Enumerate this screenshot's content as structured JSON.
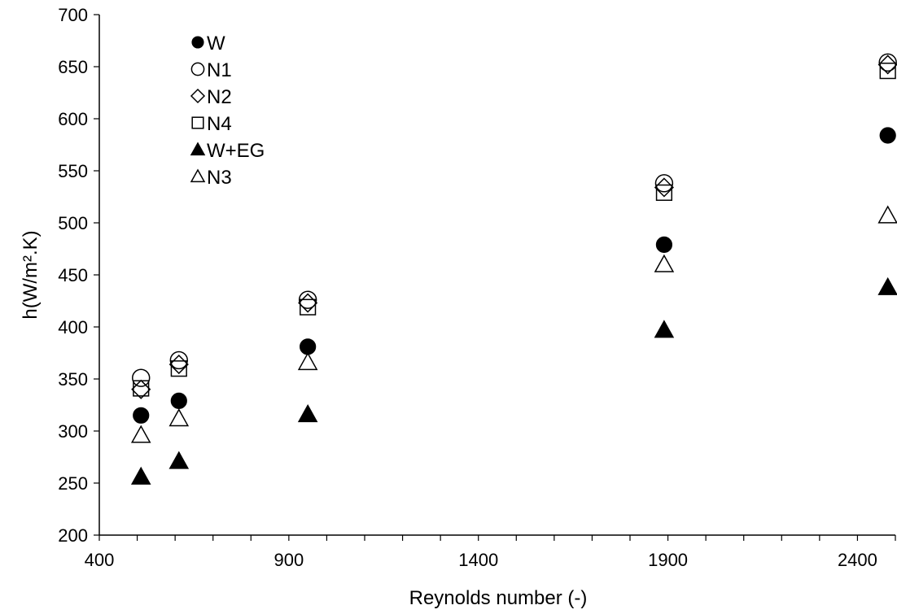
{
  "chart_data": {
    "type": "scatter",
    "xlabel": "Reynolds number (-)",
    "ylabel": "h(W/m².K)",
    "xlim": [
      400,
      2500
    ],
    "ylim": [
      200,
      700
    ],
    "x_major_ticks": [
      400,
      900,
      1400,
      1900,
      2400
    ],
    "x_minor_step": 100,
    "y_ticks": [
      200,
      250,
      300,
      350,
      400,
      450,
      500,
      550,
      600,
      650,
      700
    ],
    "grid": false,
    "legend_position": "top-left",
    "series": [
      {
        "name": "W",
        "marker": "circle-filled",
        "x": [
          510,
          610,
          950,
          1890,
          2480
        ],
        "y": [
          315,
          329,
          381,
          479,
          584
        ]
      },
      {
        "name": "N1",
        "marker": "circle-open",
        "x": [
          510,
          610,
          950,
          1890,
          2480
        ],
        "y": [
          351,
          368,
          426,
          538,
          654
        ]
      },
      {
        "name": "N2",
        "marker": "diamond-open",
        "x": [
          510,
          610,
          950,
          1890,
          2480
        ],
        "y": [
          340,
          364,
          423,
          534,
          652
        ]
      },
      {
        "name": "N4",
        "marker": "square-open",
        "x": [
          510,
          610,
          950,
          1890,
          2480
        ],
        "y": [
          341,
          360,
          419,
          529,
          646
        ]
      },
      {
        "name": "W+EG",
        "marker": "triangle-filled",
        "x": [
          510,
          610,
          950,
          1890,
          2480
        ],
        "y": [
          256,
          271,
          316,
          397,
          438
        ]
      },
      {
        "name": "N3",
        "marker": "triangle-open",
        "x": [
          510,
          610,
          950,
          1890,
          2480
        ],
        "y": [
          296,
          312,
          366,
          460,
          507
        ]
      }
    ]
  }
}
